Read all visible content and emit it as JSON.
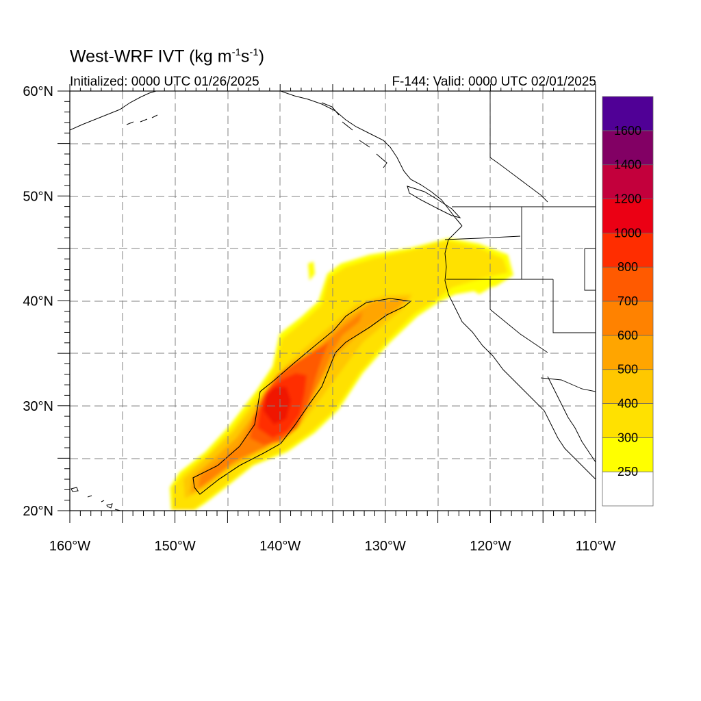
{
  "title": {
    "main": "West-WRF IVT (kg m",
    "sup1": "-1",
    "mid": "s",
    "sup2": "-1",
    "end": ")"
  },
  "subtitle_left": "Initialized: 0000 UTC 01/26/2025",
  "subtitle_right": "F-144: Valid: 0000 UTC 02/01/2025",
  "map": {
    "lon_range": [
      -160,
      -110
    ],
    "lat_range": [
      20,
      60
    ],
    "lat_ticks": [
      {
        "value": 60,
        "label": "60°N"
      },
      {
        "value": 50,
        "label": "50°N"
      },
      {
        "value": 40,
        "label": "40°N"
      },
      {
        "value": 30,
        "label": "30°N"
      },
      {
        "value": 20,
        "label": "20°N"
      }
    ],
    "lon_ticks": [
      {
        "value": -160,
        "label": "160°W"
      },
      {
        "value": -150,
        "label": "150°W"
      },
      {
        "value": -140,
        "label": "140°W"
      },
      {
        "value": -130,
        "label": "130°W"
      },
      {
        "value": -120,
        "label": "120°W"
      },
      {
        "value": -110,
        "label": "110°W"
      }
    ],
    "gridlines": "dashed every 5°"
  },
  "colorbar": {
    "levels": [
      250,
      300,
      400,
      500,
      600,
      700,
      800,
      1000,
      1200,
      1400,
      1600
    ],
    "colors": [
      "#ffffff",
      "#ffff00",
      "#ffe100",
      "#ffc800",
      "#ffa500",
      "#ff8200",
      "#ff5a00",
      "#ff2d00",
      "#eb0014",
      "#c3003c",
      "#820064",
      "#500096"
    ],
    "labels": [
      "250",
      "300",
      "400",
      "500",
      "600",
      "700",
      "800",
      "1000",
      "1200",
      "1400",
      "1600"
    ]
  },
  "colors": {
    "land_line": "#000000",
    "grid": "#777777"
  }
}
